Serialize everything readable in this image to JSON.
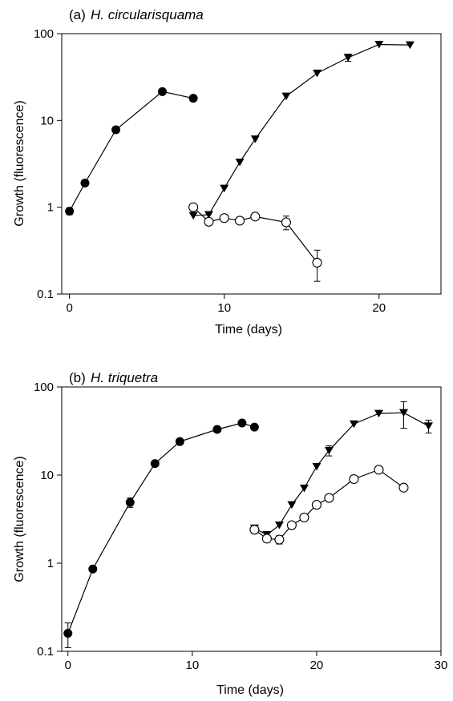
{
  "chart_data": [
    {
      "type": "scatter",
      "panel_label": "(a)",
      "title": "H. circularisquama",
      "xlabel": "Time (days)",
      "ylabel": "Growth (fluorescence)",
      "xlim": [
        -0.5,
        24
      ],
      "ylim": [
        0.1,
        100
      ],
      "yscale": "log",
      "x_ticks": [
        0,
        10,
        20
      ],
      "y_ticks": [
        0.1,
        1,
        10,
        100
      ],
      "x_tick_labels": [
        "0",
        "10",
        "20"
      ],
      "y_tick_labels": [
        "0.1",
        "1",
        "10",
        "100"
      ],
      "grid": false,
      "series": [
        {
          "marker": "filled-circle",
          "x": [
            0,
            1,
            3,
            6,
            8
          ],
          "y": [
            0.9,
            1.9,
            7.8,
            21.5,
            18
          ],
          "err": [
            0.08,
            0,
            0,
            0,
            0
          ]
        },
        {
          "marker": "filled-triangle-down",
          "x": [
            8,
            9,
            10,
            11,
            12,
            14,
            16,
            18,
            20,
            22
          ],
          "y": [
            0.8,
            0.82,
            1.65,
            3.3,
            6.1,
            19,
            35,
            53,
            75,
            74
          ],
          "err": [
            0,
            0,
            0,
            0,
            0,
            0,
            0,
            5,
            0,
            0
          ]
        },
        {
          "marker": "open-circle",
          "x": [
            8,
            9,
            10,
            11,
            12,
            14,
            16
          ],
          "y": [
            1.0,
            0.68,
            0.75,
            0.7,
            0.78,
            0.67,
            0.23
          ],
          "err": [
            0,
            0,
            0,
            0,
            0,
            0.12,
            0.09
          ]
        }
      ]
    },
    {
      "type": "scatter",
      "panel_label": "(b)",
      "title": "H. triquetra",
      "xlabel": "Time (days)",
      "ylabel": "Growth (fluorescence)",
      "xlim": [
        -0.5,
        30
      ],
      "ylim": [
        0.1,
        100
      ],
      "yscale": "log",
      "x_ticks": [
        0,
        10,
        20,
        30
      ],
      "y_ticks": [
        0.1,
        1,
        10,
        100
      ],
      "x_tick_labels": [
        "0",
        "10",
        "20",
        "30"
      ],
      "y_tick_labels": [
        "0.1",
        "1",
        "10",
        "100"
      ],
      "grid": false,
      "series": [
        {
          "marker": "filled-circle",
          "x": [
            0,
            2,
            5,
            7,
            9,
            12,
            14,
            15
          ],
          "y": [
            0.16,
            0.86,
            4.9,
            13.5,
            24,
            33,
            39,
            35
          ],
          "err": [
            0.05,
            0,
            0.6,
            0,
            0,
            0,
            0,
            0
          ]
        },
        {
          "marker": "filled-triangle-down",
          "x": [
            15,
            16,
            17,
            18,
            19,
            20,
            21,
            23,
            25,
            27,
            29
          ],
          "y": [
            2.5,
            2.1,
            2.7,
            4.6,
            7.1,
            12.5,
            19,
            38,
            50,
            51,
            36
          ],
          "err": [
            0,
            0,
            0,
            0,
            0,
            0,
            2.5,
            0,
            0,
            17,
            6
          ]
        },
        {
          "marker": "open-circle",
          "x": [
            15,
            16,
            17,
            18,
            19,
            20,
            21,
            23,
            25,
            27
          ],
          "y": [
            2.4,
            1.9,
            1.85,
            2.7,
            3.3,
            4.6,
            5.5,
            9,
            11.5,
            7.2
          ],
          "err": [
            0,
            0,
            0.2,
            0,
            0,
            0,
            0,
            0,
            0,
            0
          ]
        }
      ]
    }
  ]
}
